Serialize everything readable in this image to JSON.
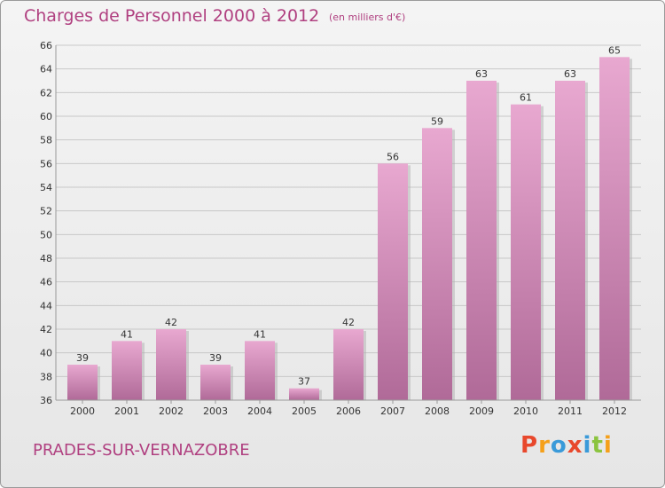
{
  "header": {
    "title": "Charges de Personnel 2000 à 2012",
    "unit": "(en milliers d'€)"
  },
  "footer": {
    "commune": "PRADES-SUR-VERNAZOBRE",
    "logo": "Proxiti"
  },
  "colors": {
    "accent": "#b04080",
    "bar_light": "#e8a8d0",
    "bar_dark": "#b06a98",
    "logo_letters": [
      "#e8482c",
      "#f5a01a",
      "#3a9ad9",
      "#e8482c",
      "#3a9ad9",
      "#8bc43f",
      "#f5a01a"
    ]
  },
  "chart_data": {
    "type": "bar",
    "title": "Charges de Personnel 2000 à 2012",
    "categories": [
      "2000",
      "2001",
      "2002",
      "2003",
      "2004",
      "2005",
      "2006",
      "2007",
      "2008",
      "2009",
      "2010",
      "2011",
      "2012"
    ],
    "values": [
      39,
      41,
      42,
      39,
      41,
      37,
      42,
      56,
      59,
      63,
      61,
      63,
      65
    ],
    "ylim": [
      36,
      66
    ],
    "yticks": [
      36,
      38,
      40,
      42,
      44,
      46,
      48,
      50,
      52,
      54,
      56,
      58,
      60,
      62,
      64,
      66
    ],
    "grid": true,
    "data_labels": true
  }
}
